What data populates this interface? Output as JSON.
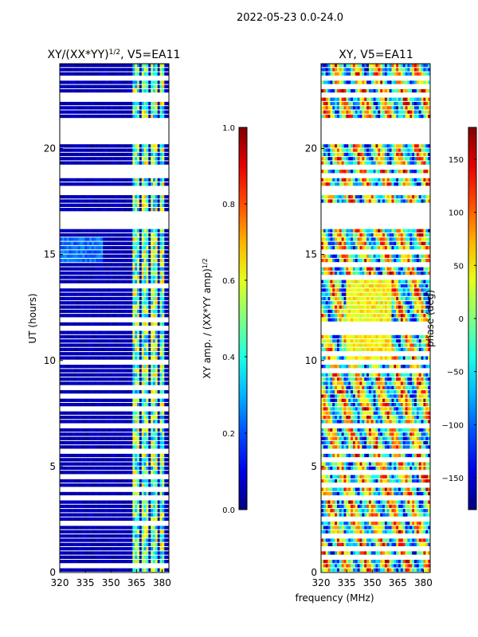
{
  "chart_data": {
    "suptitle": "2022-05-23 0.0-24.0",
    "xlabel": "frequency (MHz)",
    "panels": [
      {
        "type": "heatmap",
        "title_main": "XY/(XX*YY)",
        "title_sup": "1/2",
        "title_rest": ", V5=EA11",
        "ylabel": "UT (hours)",
        "xlim": [
          320,
          384
        ],
        "xticks": [
          320,
          335,
          350,
          365,
          380
        ],
        "ylim": [
          0,
          24
        ],
        "yticks": [
          0,
          5,
          10,
          15,
          20
        ],
        "colorbar": {
          "label_main": "XY amp. / (XX*YY amp)",
          "label_sup": "1/2",
          "range": [
            0.0,
            1.0
          ],
          "ticks": [
            "0.0",
            "0.2",
            "0.4",
            "0.6",
            "0.8",
            "1.0"
          ]
        }
      },
      {
        "type": "heatmap",
        "title_main": "XY, V5=EA11",
        "ylabel": "",
        "xlim": [
          320,
          384
        ],
        "xticks": [
          320,
          335,
          350,
          365,
          380
        ],
        "ylim": [
          0,
          24
        ],
        "yticks": [
          0,
          5,
          10,
          15,
          20
        ],
        "colorbar": {
          "label_main": "phase (deg)",
          "range": [
            -180,
            180
          ],
          "ticks": [
            "-150",
            "-100",
            "-50",
            "0",
            "50",
            "100",
            "150"
          ]
        }
      }
    ],
    "gaps_hours": [
      [
        3.4,
        3.7
      ],
      [
        5.6,
        5.75
      ],
      [
        16.3,
        17.1
      ],
      [
        20.2,
        21.5
      ],
      [
        14.0,
        14.1
      ],
      [
        17.9,
        18.2
      ],
      [
        19.0,
        19.1
      ],
      [
        18.6,
        18.8
      ],
      [
        9.8,
        9.9
      ],
      [
        11.8,
        11.9
      ],
      [
        6.8,
        6.9
      ],
      [
        22.5,
        22.7
      ],
      [
        23.3,
        23.5
      ]
    ],
    "colormap": "jet"
  }
}
